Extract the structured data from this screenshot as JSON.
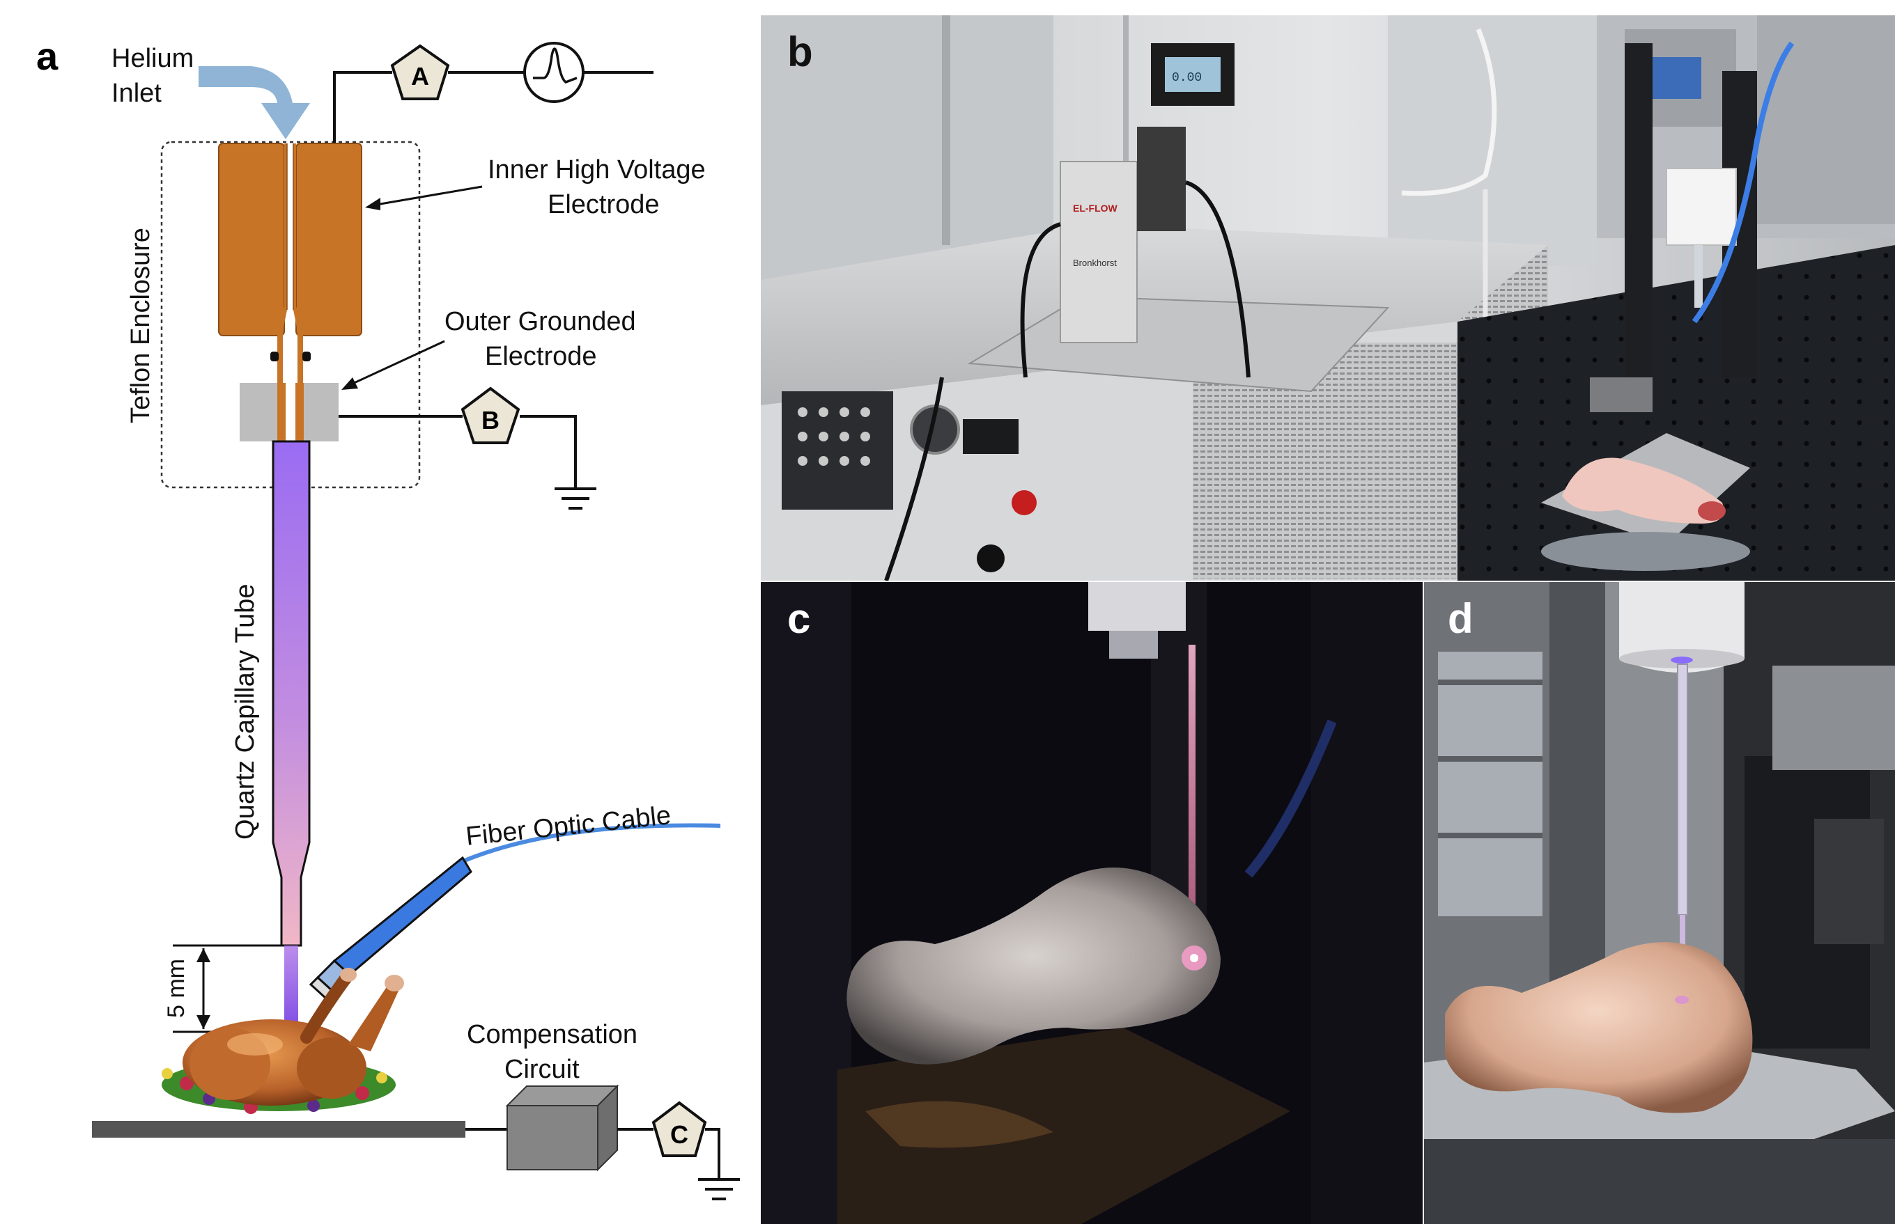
{
  "panels": {
    "a": {
      "letter": "a"
    },
    "b": {
      "letter": "b"
    },
    "c": {
      "letter": "c"
    },
    "d": {
      "letter": "d"
    }
  },
  "schematic": {
    "helium_inlet_line1": "Helium",
    "helium_inlet_line2": "Inlet",
    "inner_electrode_line1": "Inner High Voltage",
    "inner_electrode_line2": "Electrode",
    "outer_electrode_line1": "Outer Grounded",
    "outer_electrode_line2": "Electrode",
    "teflon_enclosure": "Teflon Enclosure",
    "quartz_tube": "Quartz Capillary Tube",
    "fiber_optic": "Fiber Optic Cable",
    "gap": "5 mm",
    "compensation_line1": "Compensation",
    "compensation_line2": "Circuit",
    "probe_a": "A",
    "probe_b": "B",
    "probe_c": "C"
  },
  "photo_b": {
    "flow_meter_brand": "Bronkhorst",
    "flow_meter_model": "EL-FLOW",
    "display_reading": "0.00"
  },
  "colors": {
    "electrode": "#c87426",
    "electrode_stroke": "#8a4c15",
    "grounded_electrode": "#bdbdbd",
    "plasma_top": "#9b6cf0",
    "plasma_bottom": "#f0b0c8",
    "helium_arrow": "#8fb4d6",
    "fiber": "#4a8ae0"
  }
}
